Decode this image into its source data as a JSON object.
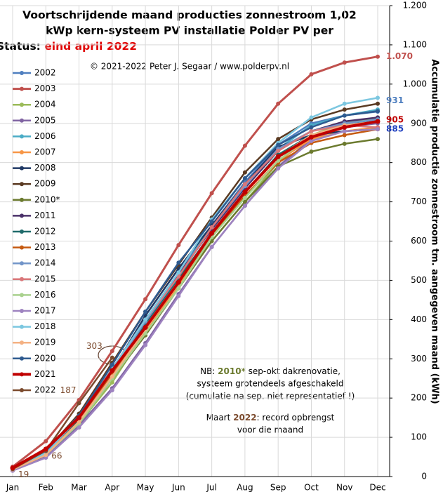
{
  "chart_data": {
    "type": "line",
    "title": [
      "Voortschrijdende  maand producties zonnestroom 1,02",
      "kWp kern-systeem PV installatie  Polder PV per",
      "kalenderjaar (kWh). Status: "
    ],
    "status": "eind april 2022",
    "credit": "© 2021-2022 Peter J. Segaar / www.polderpv.nl",
    "y_label": "Accumulatie productie zonnestroom tm. aangegeven maand (kWh)",
    "notes": {
      "nb": "NB: ",
      "nb_year": "2010*",
      "nb_rest": " sep-okt dakrenovatie,",
      "line2": "systeem grotendeels afgeschakeld",
      "line3": "(cumulatie na sep. niet representatief !)",
      "maart": "Maart ",
      "maart_year": "2022",
      "maart_rest": ": record opbrengst",
      "line5": "voor die maand"
    },
    "categories": [
      "Jan",
      "Feb",
      "Mar",
      "Apr",
      "May",
      "Jun",
      "Jul",
      "Aug",
      "Sep",
      "Oct",
      "Nov",
      "Dec"
    ],
    "ylim": [
      0,
      1200
    ],
    "yticks": [
      0,
      100,
      200,
      300,
      400,
      500,
      600,
      700,
      800,
      900,
      {
        "value": 1000,
        "label": "1.000"
      },
      {
        "value": 1100,
        "label": "1.100"
      },
      {
        "value": 1200,
        "label": "1.200"
      }
    ],
    "grid": true,
    "series": [
      {
        "name": "2002",
        "color": "#4f7fbf",
        "values": [
          20,
          55,
          130,
          250,
          400,
          520,
          640,
          750,
          845,
          900,
          920,
          930
        ]
      },
      {
        "name": "2003",
        "color": "#c0504d",
        "values": [
          25,
          90,
          195,
          320,
          452,
          590,
          722,
          843,
          950,
          1025,
          1055,
          1070
        ],
        "value_labels": [
          null,
          null,
          null,
          null,
          null,
          null,
          null,
          null,
          null,
          null,
          null,
          "1.070"
        ]
      },
      {
        "name": "2004",
        "color": "#9bbb59",
        "values": [
          18,
          55,
          135,
          240,
          370,
          480,
          600,
          700,
          800,
          870,
          900,
          915
        ]
      },
      {
        "name": "2005",
        "color": "#8064a2",
        "values": [
          15,
          50,
          130,
          225,
          340,
          465,
          585,
          690,
          790,
          860,
          890,
          900
        ]
      },
      {
        "name": "2006",
        "color": "#4bacc6",
        "values": [
          20,
          60,
          145,
          265,
          390,
          510,
          640,
          745,
          835,
          895,
          920,
          935
        ]
      },
      {
        "name": "2007",
        "color": "#f79646",
        "values": [
          18,
          55,
          140,
          255,
          370,
          485,
          610,
          715,
          805,
          860,
          880,
          890
        ]
      },
      {
        "name": "2008",
        "color": "#1f3864",
        "values": [
          20,
          55,
          140,
          270,
          410,
          530,
          640,
          745,
          840,
          870,
          880,
          885
        ]
      },
      {
        "name": "2009",
        "color": "#5a3a22",
        "values": [
          20,
          65,
          160,
          290,
          420,
          540,
          660,
          775,
          860,
          910,
          935,
          950
        ]
      },
      {
        "name": "2010*",
        "color": "#6b7a2e",
        "values": [
          18,
          60,
          140,
          250,
          360,
          480,
          600,
          700,
          790,
          828,
          848,
          860
        ]
      },
      {
        "name": "2011",
        "color": "#4a3069",
        "values": [
          18,
          60,
          150,
          275,
          400,
          515,
          630,
          735,
          830,
          880,
          905,
          915
        ]
      },
      {
        "name": "2012",
        "color": "#1f6b6b",
        "values": [
          20,
          58,
          145,
          265,
          390,
          505,
          620,
          725,
          820,
          870,
          895,
          910
        ]
      },
      {
        "name": "2013",
        "color": "#c55a11",
        "values": [
          18,
          55,
          140,
          260,
          380,
          495,
          615,
          715,
          800,
          850,
          870,
          885
        ]
      },
      {
        "name": "2014",
        "color": "#7295c9",
        "values": [
          20,
          60,
          150,
          270,
          395,
          510,
          635,
          740,
          835,
          880,
          900,
          910
        ]
      },
      {
        "name": "2015",
        "color": "#d9777a",
        "values": [
          22,
          65,
          155,
          275,
          400,
          510,
          635,
          745,
          830,
          880,
          895,
          890
        ]
      },
      {
        "name": "2016",
        "color": "#a9d18e",
        "values": [
          18,
          55,
          135,
          250,
          365,
          480,
          610,
          710,
          805,
          870,
          895,
          905
        ]
      },
      {
        "name": "2017",
        "color": "#9e83c0",
        "values": [
          15,
          48,
          125,
          220,
          335,
          460,
          585,
          690,
          785,
          855,
          880,
          885
        ]
      },
      {
        "name": "2018",
        "color": "#7cc7e0",
        "values": [
          20,
          60,
          150,
          275,
          400,
          520,
          655,
          760,
          850,
          915,
          950,
          965
        ]
      },
      {
        "name": "2019",
        "color": "#f4b183",
        "values": [
          18,
          55,
          140,
          255,
          375,
          495,
          620,
          725,
          815,
          870,
          895,
          905
        ]
      },
      {
        "name": "2020",
        "color": "#2e5a8f",
        "values": [
          22,
          65,
          155,
          285,
          420,
          545,
          650,
          760,
          845,
          890,
          920,
          931
        ]
      },
      {
        "name": "2021",
        "color": "#c00000",
        "values": [
          22,
          70,
          150,
          270,
          380,
          495,
          620,
          725,
          815,
          865,
          890,
          905
        ]
      },
      {
        "name": "2022",
        "color": "#7b4a2d",
        "values": [
          19,
          66,
          187,
          303,
          null,
          null,
          null,
          null,
          null,
          null,
          null,
          null
        ]
      }
    ]
  }
}
